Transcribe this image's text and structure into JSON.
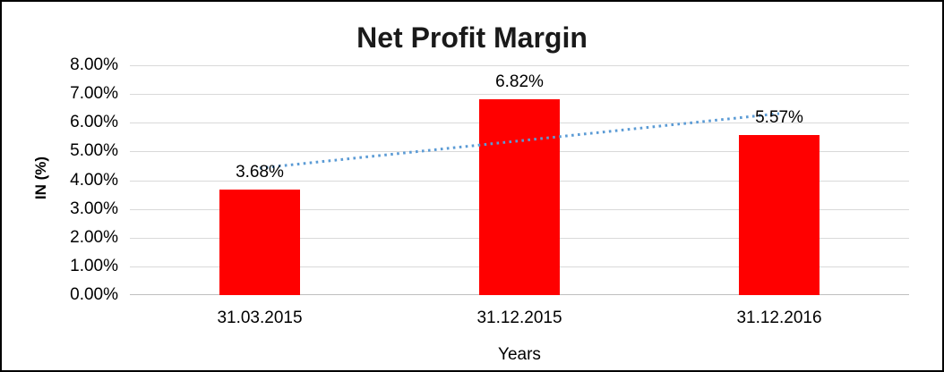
{
  "chart_data": {
    "type": "bar",
    "title": "Net Profit Margin",
    "xlabel": "Years",
    "ylabel": "IN (%)",
    "categories": [
      "31.03.2015",
      "31.12.2015",
      "31.12.2016"
    ],
    "values": [
      3.68,
      6.82,
      5.57
    ],
    "data_labels": [
      "3.68%",
      "6.82%",
      "5.57%"
    ],
    "y_ticks": [
      "0.00%",
      "1.00%",
      "2.00%",
      "3.00%",
      "4.00%",
      "5.00%",
      "6.00%",
      "7.00%",
      "8.00%"
    ],
    "ylim": [
      0,
      8
    ],
    "grid": true,
    "legend": false,
    "bar_color": "#FF0000",
    "trendline": {
      "style": "dotted",
      "color": "#5B9BD5",
      "start_value_pct": 4.42,
      "end_value_pct": 6.32,
      "spans": "first-category-center to last-category-center"
    }
  },
  "colors": {
    "gridline": "#D9D9D9",
    "axis_line": "#BFBFBF",
    "text": "#000000",
    "background": "#FFFFFF",
    "border": "#000000"
  }
}
